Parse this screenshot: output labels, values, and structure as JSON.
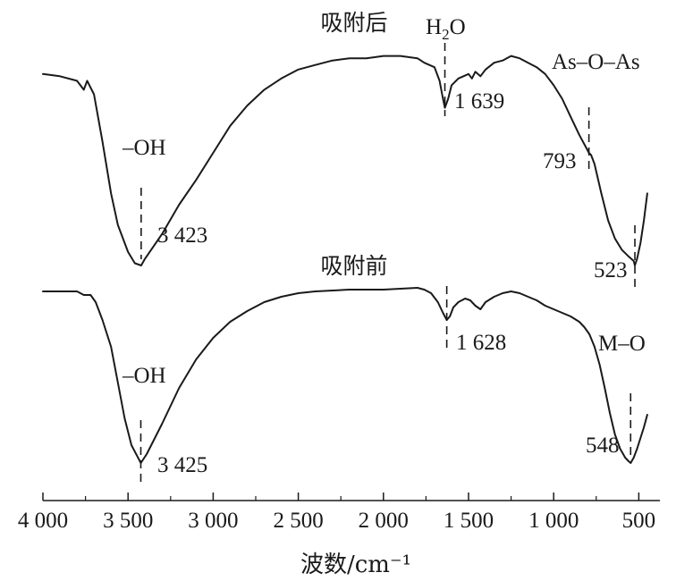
{
  "chart_data": {
    "type": "line",
    "title": "",
    "xlabel": "波数/cm⁻¹",
    "ylabel": "",
    "x_reversed": true,
    "xlim": [
      4000,
      450
    ],
    "xticks": [
      4000,
      3500,
      3000,
      2500,
      2000,
      1500,
      1000,
      500
    ],
    "xtick_labels": [
      "4 000",
      "3 500",
      "3 000",
      "2 500",
      "2 000",
      "1 500",
      "1 000",
      "500"
    ],
    "grid": false,
    "legend": "none",
    "series": [
      {
        "name": "吸附后",
        "peaks": [
          {
            "x": 3423,
            "label": "3 423",
            "group": "–OH"
          },
          {
            "x": 1639,
            "label": "1 639",
            "group": "H₂O"
          },
          {
            "x": 793,
            "label": "793",
            "group": "As–O–As"
          },
          {
            "x": 523,
            "label": "523",
            "group": ""
          }
        ],
        "points": [
          [
            4000,
            0.85
          ],
          [
            3900,
            0.84
          ],
          [
            3800,
            0.82
          ],
          [
            3760,
            0.78
          ],
          [
            3740,
            0.82
          ],
          [
            3700,
            0.76
          ],
          [
            3650,
            0.55
          ],
          [
            3600,
            0.32
          ],
          [
            3560,
            0.18
          ],
          [
            3500,
            0.06
          ],
          [
            3460,
            0.01
          ],
          [
            3423,
            0.0
          ],
          [
            3400,
            0.03
          ],
          [
            3300,
            0.14
          ],
          [
            3200,
            0.27
          ],
          [
            3100,
            0.38
          ],
          [
            3000,
            0.5
          ],
          [
            2900,
            0.62
          ],
          [
            2800,
            0.71
          ],
          [
            2700,
            0.78
          ],
          [
            2600,
            0.83
          ],
          [
            2500,
            0.87
          ],
          [
            2400,
            0.89
          ],
          [
            2300,
            0.91
          ],
          [
            2200,
            0.92
          ],
          [
            2100,
            0.92
          ],
          [
            2000,
            0.93
          ],
          [
            1900,
            0.93
          ],
          [
            1800,
            0.92
          ],
          [
            1760,
            0.9
          ],
          [
            1700,
            0.88
          ],
          [
            1670,
            0.82
          ],
          [
            1650,
            0.74
          ],
          [
            1639,
            0.7
          ],
          [
            1620,
            0.74
          ],
          [
            1600,
            0.8
          ],
          [
            1560,
            0.83
          ],
          [
            1530,
            0.84
          ],
          [
            1500,
            0.85
          ],
          [
            1480,
            0.83
          ],
          [
            1460,
            0.86
          ],
          [
            1430,
            0.84
          ],
          [
            1400,
            0.87
          ],
          [
            1350,
            0.9
          ],
          [
            1300,
            0.91
          ],
          [
            1250,
            0.93
          ],
          [
            1200,
            0.92
          ],
          [
            1150,
            0.9
          ],
          [
            1100,
            0.88
          ],
          [
            1050,
            0.85
          ],
          [
            1000,
            0.8
          ],
          [
            950,
            0.74
          ],
          [
            900,
            0.66
          ],
          [
            850,
            0.58
          ],
          [
            800,
            0.51
          ],
          [
            793,
            0.5
          ],
          [
            780,
            0.49
          ],
          [
            760,
            0.45
          ],
          [
            720,
            0.32
          ],
          [
            680,
            0.2
          ],
          [
            640,
            0.12
          ],
          [
            600,
            0.07
          ],
          [
            560,
            0.04
          ],
          [
            530,
            0.02
          ],
          [
            523,
            0.0
          ],
          [
            510,
            0.03
          ],
          [
            490,
            0.1
          ],
          [
            470,
            0.2
          ],
          [
            450,
            0.32
          ]
        ]
      },
      {
        "name": "吸附前",
        "peaks": [
          {
            "x": 3425,
            "label": "3 425",
            "group": "–OH"
          },
          {
            "x": 1628,
            "label": "1 628",
            "group": ""
          },
          {
            "x": 548,
            "label": "548",
            "group": "M–O"
          }
        ],
        "points": [
          [
            4000,
            0.96
          ],
          [
            3900,
            0.96
          ],
          [
            3800,
            0.96
          ],
          [
            3760,
            0.94
          ],
          [
            3720,
            0.94
          ],
          [
            3690,
            0.9
          ],
          [
            3650,
            0.8
          ],
          [
            3600,
            0.65
          ],
          [
            3560,
            0.45
          ],
          [
            3520,
            0.25
          ],
          [
            3480,
            0.1
          ],
          [
            3425,
            0.0
          ],
          [
            3390,
            0.05
          ],
          [
            3300,
            0.22
          ],
          [
            3200,
            0.42
          ],
          [
            3100,
            0.58
          ],
          [
            3000,
            0.7
          ],
          [
            2900,
            0.79
          ],
          [
            2800,
            0.85
          ],
          [
            2700,
            0.9
          ],
          [
            2600,
            0.93
          ],
          [
            2500,
            0.95
          ],
          [
            2400,
            0.96
          ],
          [
            2200,
            0.97
          ],
          [
            2000,
            0.97
          ],
          [
            1800,
            0.98
          ],
          [
            1760,
            0.97
          ],
          [
            1720,
            0.95
          ],
          [
            1680,
            0.9
          ],
          [
            1650,
            0.84
          ],
          [
            1628,
            0.8
          ],
          [
            1610,
            0.82
          ],
          [
            1590,
            0.87
          ],
          [
            1560,
            0.9
          ],
          [
            1520,
            0.92
          ],
          [
            1490,
            0.91
          ],
          [
            1460,
            0.88
          ],
          [
            1430,
            0.86
          ],
          [
            1400,
            0.9
          ],
          [
            1350,
            0.93
          ],
          [
            1300,
            0.95
          ],
          [
            1250,
            0.96
          ],
          [
            1200,
            0.95
          ],
          [
            1150,
            0.93
          ],
          [
            1100,
            0.91
          ],
          [
            1050,
            0.88
          ],
          [
            1000,
            0.86
          ],
          [
            950,
            0.84
          ],
          [
            900,
            0.82
          ],
          [
            850,
            0.79
          ],
          [
            820,
            0.76
          ],
          [
            790,
            0.72
          ],
          [
            760,
            0.65
          ],
          [
            730,
            0.55
          ],
          [
            700,
            0.42
          ],
          [
            670,
            0.28
          ],
          [
            640,
            0.16
          ],
          [
            610,
            0.08
          ],
          [
            580,
            0.03
          ],
          [
            560,
            0.01
          ],
          [
            548,
            0.0
          ],
          [
            530,
            0.03
          ],
          [
            510,
            0.08
          ],
          [
            490,
            0.14
          ],
          [
            470,
            0.2
          ],
          [
            450,
            0.27
          ]
        ]
      }
    ]
  }
}
